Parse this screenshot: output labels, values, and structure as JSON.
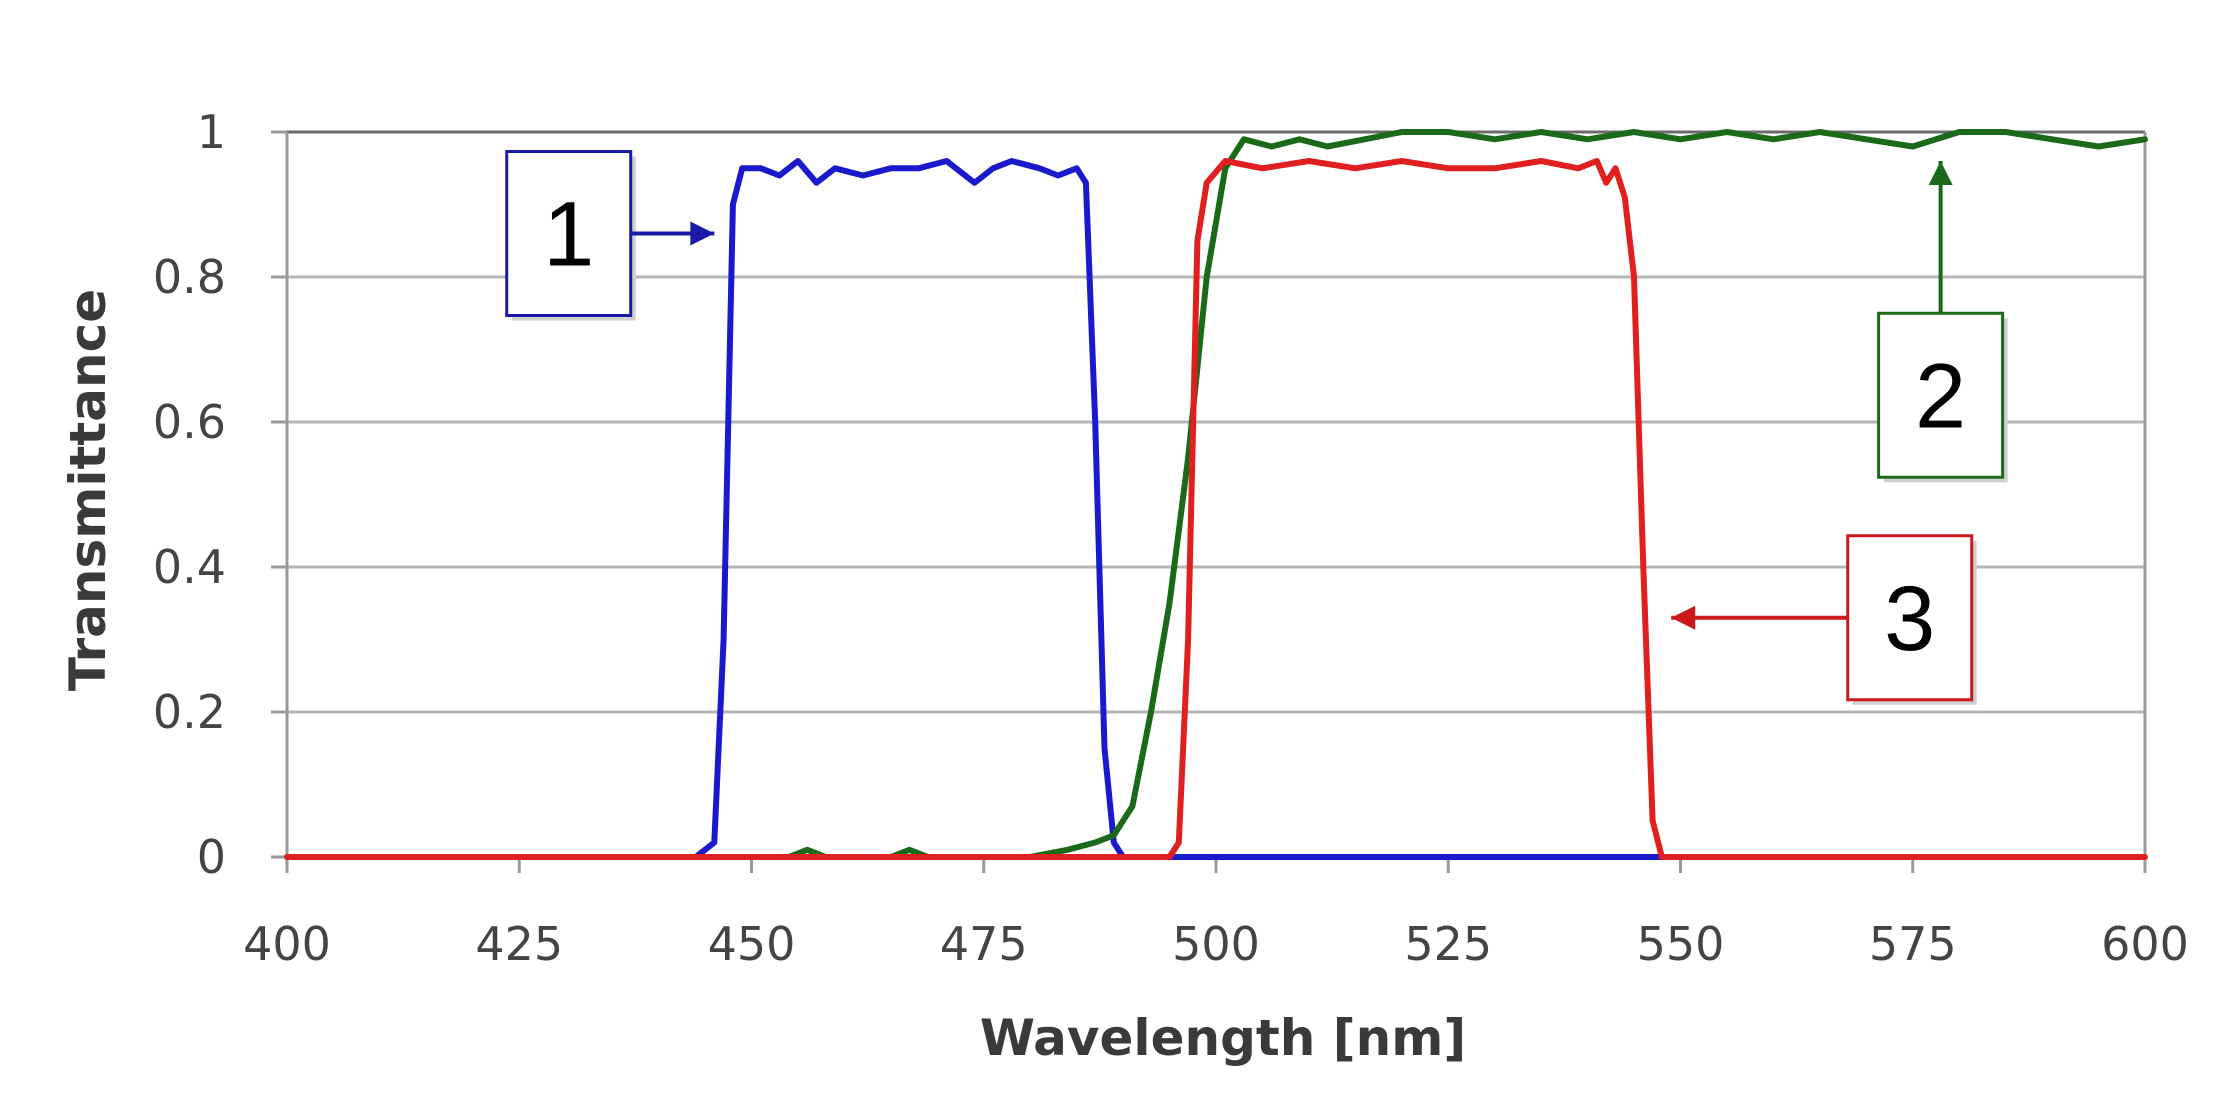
{
  "chart_data": {
    "type": "line",
    "xlabel": "Wavelength [nm]",
    "ylabel": "Transmittance",
    "xlim": [
      400,
      600
    ],
    "ylim": [
      0,
      1
    ],
    "x_ticks": [
      "400",
      "425",
      "450",
      "475",
      "500",
      "525",
      "550",
      "575",
      "600"
    ],
    "x_tick_values": [
      400,
      425,
      450,
      475,
      500,
      525,
      550,
      575,
      600
    ],
    "y_ticks": [
      "0",
      "0.2",
      "0.4",
      "0.6",
      "0.8",
      "1"
    ],
    "y_tick_values": [
      0,
      0.2,
      0.4,
      0.6,
      0.8,
      1
    ],
    "grid": "horizontal",
    "series": [
      {
        "color": "#1a1acc",
        "points": [
          [
            400,
            0
          ],
          [
            444,
            0
          ],
          [
            446,
            0.02
          ],
          [
            447,
            0.3
          ],
          [
            448,
            0.9
          ],
          [
            449,
            0.95
          ],
          [
            451,
            0.95
          ],
          [
            453,
            0.94
          ],
          [
            455,
            0.96
          ],
          [
            457,
            0.93
          ],
          [
            459,
            0.95
          ],
          [
            462,
            0.94
          ],
          [
            465,
            0.95
          ],
          [
            468,
            0.95
          ],
          [
            471,
            0.96
          ],
          [
            473,
            0.94
          ],
          [
            474,
            0.93
          ],
          [
            476,
            0.95
          ],
          [
            478,
            0.96
          ],
          [
            481,
            0.95
          ],
          [
            483,
            0.94
          ],
          [
            485,
            0.95
          ],
          [
            486,
            0.93
          ],
          [
            487,
            0.6
          ],
          [
            488,
            0.15
          ],
          [
            489,
            0.02
          ],
          [
            490,
            0
          ],
          [
            548,
            0
          ]
        ]
      },
      {
        "color": "#1a6a1a",
        "points": [
          [
            400,
            0
          ],
          [
            454,
            0
          ],
          [
            456,
            0.01
          ],
          [
            458,
            0
          ],
          [
            465,
            0
          ],
          [
            467,
            0.01
          ],
          [
            469,
            0
          ],
          [
            480,
            0
          ],
          [
            484,
            0.01
          ],
          [
            487,
            0.02
          ],
          [
            489,
            0.03
          ],
          [
            491,
            0.07
          ],
          [
            493,
            0.2
          ],
          [
            495,
            0.35
          ],
          [
            497,
            0.55
          ],
          [
            499,
            0.8
          ],
          [
            501,
            0.95
          ],
          [
            503,
            0.99
          ],
          [
            506,
            0.98
          ],
          [
            509,
            0.99
          ],
          [
            512,
            0.98
          ],
          [
            516,
            0.99
          ],
          [
            520,
            1.0
          ],
          [
            525,
            1.0
          ],
          [
            530,
            0.99
          ],
          [
            535,
            1.0
          ],
          [
            540,
            0.99
          ],
          [
            545,
            1.0
          ],
          [
            550,
            0.99
          ],
          [
            555,
            1.0
          ],
          [
            560,
            0.99
          ],
          [
            565,
            1.0
          ],
          [
            570,
            0.99
          ],
          [
            575,
            0.98
          ],
          [
            580,
            1.0
          ],
          [
            585,
            1.0
          ],
          [
            590,
            0.99
          ],
          [
            595,
            0.98
          ],
          [
            600,
            0.99
          ]
        ]
      },
      {
        "color": "#e02020",
        "points": [
          [
            400,
            0
          ],
          [
            495,
            0
          ],
          [
            496,
            0.02
          ],
          [
            497,
            0.3
          ],
          [
            498,
            0.85
          ],
          [
            499,
            0.93
          ],
          [
            501,
            0.96
          ],
          [
            505,
            0.95
          ],
          [
            510,
            0.96
          ],
          [
            515,
            0.95
          ],
          [
            520,
            0.96
          ],
          [
            525,
            0.95
          ],
          [
            530,
            0.95
          ],
          [
            535,
            0.96
          ],
          [
            539,
            0.95
          ],
          [
            541,
            0.96
          ],
          [
            542,
            0.93
          ],
          [
            543,
            0.95
          ],
          [
            544,
            0.91
          ],
          [
            545,
            0.8
          ],
          [
            546,
            0.4
          ],
          [
            547,
            0.05
          ],
          [
            548,
            0
          ],
          [
            600,
            0
          ]
        ]
      }
    ],
    "callouts": [
      {
        "label": "1",
        "color": "#1a1aa8",
        "arrow_from": [
          437,
          0.86
        ],
        "arrow_to": [
          446,
          0.86
        ],
        "arrow_dir": "right"
      },
      {
        "label": "2",
        "color": "#1a6a1a",
        "arrow_from": [
          578,
          0.75
        ],
        "arrow_to": [
          578,
          0.96
        ],
        "arrow_dir": "up"
      },
      {
        "label": "3",
        "color": "#cc1a1a",
        "arrow_from": [
          568,
          0.33
        ],
        "arrow_to": [
          549,
          0.33
        ],
        "arrow_dir": "left"
      }
    ]
  }
}
